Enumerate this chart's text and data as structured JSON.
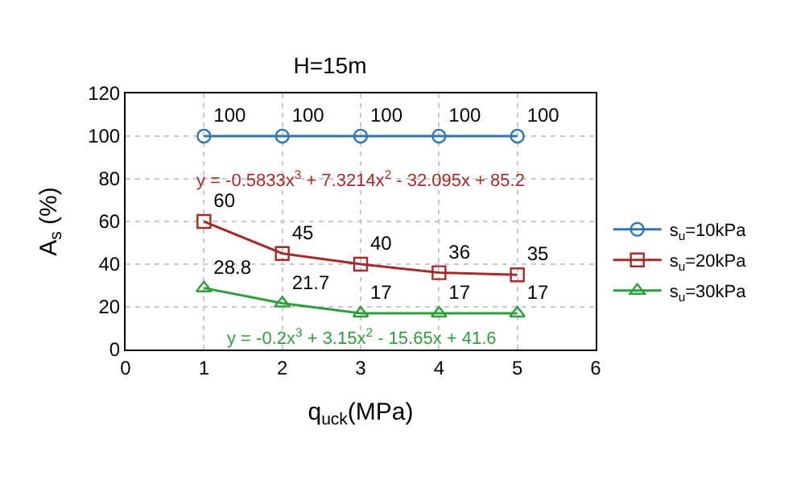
{
  "chart_data": {
    "type": "line",
    "title": "H=15m",
    "xlabel": "q$_{uck}$(MPa)",
    "ylabel": "A$_{s}$ (%)",
    "x": [
      1,
      2,
      3,
      4,
      5
    ],
    "series": [
      {
        "name": "s$_{u}$=10kPa",
        "color": "#2e75b6",
        "values": [
          100,
          100,
          100,
          100,
          100
        ],
        "marker": "circle"
      },
      {
        "name": "s$_{u}$=20kPa",
        "color": "#a52a2a",
        "values": [
          60,
          45,
          40,
          36,
          35
        ],
        "marker": "square"
      },
      {
        "name": "s$_{u}$=30kPa",
        "color": "#2e9e3e",
        "values": [
          28.8,
          21.7,
          17,
          17,
          17
        ],
        "marker": "triangle"
      }
    ],
    "annotations": [
      "y = -0.5833x$^{3}$ + 7.3214x$^{2}$ - 32.095x + 85.2",
      "y = -0.2x$^{3}$ + 3.15x$^{2}$ - 15.65x + 41.6"
    ],
    "xlim": [
      0,
      6
    ],
    "xticks": [
      0,
      1,
      2,
      3,
      4,
      5,
      6
    ],
    "ylim": [
      0,
      120
    ],
    "yticks": [
      0,
      20,
      40,
      60,
      80,
      100,
      120
    ],
    "grid": true,
    "legend": "right",
    "data_labels": true,
    "line_style": "solid"
  }
}
